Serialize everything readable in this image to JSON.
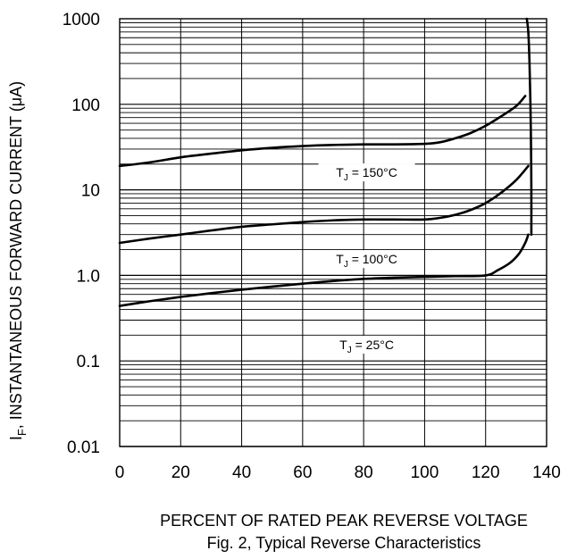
{
  "chart_data": {
    "type": "line",
    "caption": "Fig. 2,  Typical Reverse Characteristics",
    "xlabel": "PERCENT OF RATED PEAK REVERSE VOLTAGE",
    "ylabel_prefix": "I",
    "ylabel_sub": "F",
    "ylabel_rest": ", INSTANTANEOUS FORWARD CURRENT (μA)",
    "xlim": [
      0,
      140
    ],
    "ylim": [
      0.01,
      1000
    ],
    "y_scale": "log",
    "grid": true,
    "x_ticks": [
      {
        "value": 0,
        "label": "0"
      },
      {
        "value": 20,
        "label": "20"
      },
      {
        "value": 40,
        "label": "40"
      },
      {
        "value": 60,
        "label": "60"
      },
      {
        "value": 80,
        "label": "80"
      },
      {
        "value": 100,
        "label": "100"
      },
      {
        "value": 120,
        "label": "120"
      },
      {
        "value": 140,
        "label": "140"
      }
    ],
    "y_ticks": [
      {
        "value": 1000,
        "label": "1000"
      },
      {
        "value": 100,
        "label": "100"
      },
      {
        "value": 10,
        "label": "10"
      },
      {
        "value": 1,
        "label": "1.0"
      },
      {
        "value": 0.1,
        "label": "0.1"
      },
      {
        "value": 0.01,
        "label": "0.01"
      }
    ],
    "series": [
      {
        "label_prefix": "T",
        "label_sub": "J",
        "label_rest": " = 150°C",
        "label_at": {
          "x": 81,
          "y": 16
        },
        "points": [
          [
            0,
            19
          ],
          [
            10,
            21
          ],
          [
            20,
            24
          ],
          [
            30,
            26.5
          ],
          [
            40,
            29
          ],
          [
            50,
            31
          ],
          [
            60,
            32.5
          ],
          [
            70,
            33.5
          ],
          [
            80,
            34
          ],
          [
            90,
            34
          ],
          [
            100,
            34.5
          ],
          [
            105,
            36
          ],
          [
            110,
            40
          ],
          [
            115,
            46
          ],
          [
            120,
            56
          ],
          [
            125,
            72
          ],
          [
            130,
            95
          ],
          [
            133,
            125
          ]
        ]
      },
      {
        "label_prefix": "T",
        "label_sub": "J",
        "label_rest": " = 100°C",
        "label_at": {
          "x": 81,
          "y": 1.55
        },
        "points": [
          [
            0,
            2.4
          ],
          [
            10,
            2.7
          ],
          [
            20,
            3.0
          ],
          [
            30,
            3.35
          ],
          [
            40,
            3.7
          ],
          [
            50,
            3.95
          ],
          [
            60,
            4.2
          ],
          [
            70,
            4.4
          ],
          [
            80,
            4.5
          ],
          [
            90,
            4.5
          ],
          [
            100,
            4.5
          ],
          [
            105,
            4.7
          ],
          [
            110,
            5.1
          ],
          [
            115,
            5.8
          ],
          [
            120,
            7.0
          ],
          [
            125,
            9.2
          ],
          [
            130,
            13
          ],
          [
            134,
            19
          ]
        ]
      },
      {
        "label_prefix": "T",
        "label_sub": "J",
        "label_rest": " = 25°C",
        "label_at": {
          "x": 81,
          "y": 0.155
        },
        "points": [
          [
            0,
            0.44
          ],
          [
            10,
            0.5
          ],
          [
            20,
            0.56
          ],
          [
            30,
            0.62
          ],
          [
            40,
            0.68
          ],
          [
            50,
            0.74
          ],
          [
            60,
            0.8
          ],
          [
            70,
            0.86
          ],
          [
            80,
            0.91
          ],
          [
            90,
            0.94
          ],
          [
            100,
            0.96
          ],
          [
            110,
            0.98
          ],
          [
            120,
            1.0
          ],
          [
            124,
            1.15
          ],
          [
            128,
            1.4
          ],
          [
            131,
            1.8
          ],
          [
            133,
            2.4
          ],
          [
            134,
            3.0
          ]
        ]
      },
      {
        "points": [
          [
            133.5,
            1000
          ],
          [
            134,
            700
          ],
          [
            134.4,
            300
          ],
          [
            134.7,
            100
          ],
          [
            134.9,
            30
          ],
          [
            135,
            10
          ],
          [
            135,
            3.0
          ]
        ]
      }
    ]
  }
}
